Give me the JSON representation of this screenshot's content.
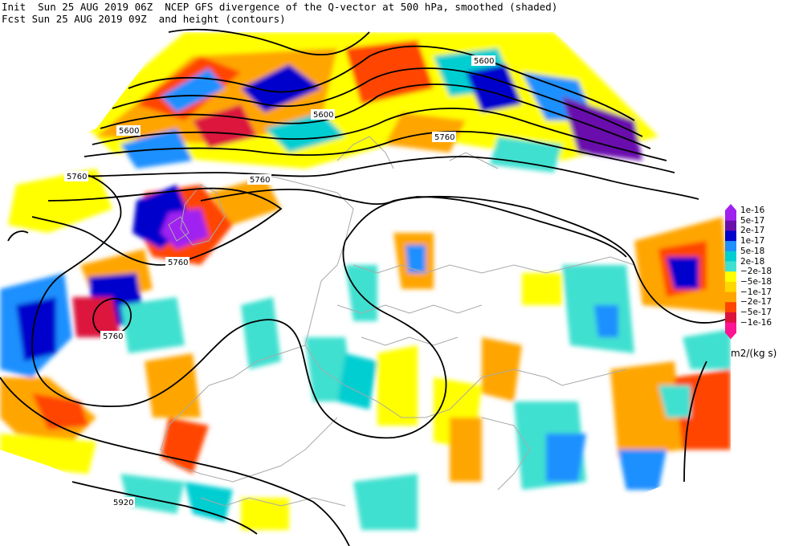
{
  "header": {
    "line1": "Init  Sun 25 AUG 2019 06Z  NCEP GFS divergence of the Q-vector at 500 hPa, smoothed (shaded)",
    "line2": "Fcst Sun 25 AUG 2019 09Z  and height (contours)"
  },
  "contour_labels": [
    "5600",
    "5600",
    "5600",
    "5760",
    "5760",
    "5760",
    "5760",
    "5760",
    "5920"
  ],
  "legend": {
    "levels": [
      "1e-16",
      "5e-17",
      "2e-17",
      "1e-17",
      "5e-18",
      "2e-18",
      "−2e-18",
      "−5e-18",
      "−1e-17",
      "−2e-17",
      "−5e-17",
      "−1e-16"
    ],
    "colors": [
      "#a020f0",
      "#6a0dad",
      "#0000cd",
      "#1e90ff",
      "#00ced1",
      "#40e0d0",
      "#ffff00",
      "#ffd700",
      "#ffa500",
      "#ff4500",
      "#dc143c",
      "#ff1493"
    ],
    "units": "m2/(kg s)"
  }
}
